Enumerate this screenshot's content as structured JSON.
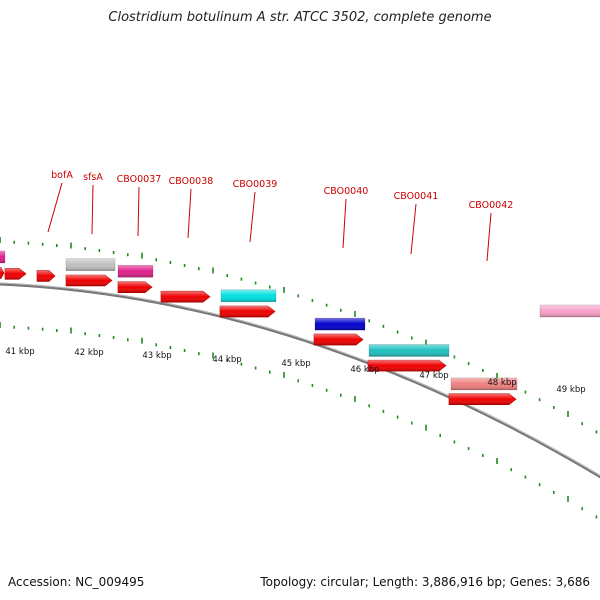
{
  "title": "Clostridium botulinum A str. ATCC 3502, complete genome",
  "footer": {
    "accession": "Accession: NC_009495",
    "summary": "Topology: circular; Length: 3,886,916 bp; Genes: 3,686"
  },
  "colors": {
    "backbone": "#888888",
    "tick": "#228B22",
    "cds": "#ee0000",
    "gene_label": "#cc0000",
    "kbp_label": "#111111"
  },
  "scale_labels": [
    "41 kbp",
    "42 kbp",
    "43 kbp",
    "44 kbp",
    "45 kbp",
    "46 kbp",
    "47 kbp",
    "48 kbp",
    "49 kbp"
  ],
  "gene_labels": [
    "bofA",
    "sfsA",
    "CBO0037",
    "CBO0038",
    "CBO0039",
    "CBO0040",
    "CBO0041",
    "CBO0042"
  ],
  "genes": [
    {
      "name": "",
      "color": "#e0208c"
    },
    {
      "name": "sfsA",
      "color": "#c0c0c0"
    },
    {
      "name": "CBO0037",
      "color": "#e0208c"
    },
    {
      "name": "CBO0039",
      "color": "#00e0e0"
    },
    {
      "name": "CBO0040",
      "color": "#0000cc"
    },
    {
      "name": "CBO0041",
      "color": "#20c0c0"
    },
    {
      "name": "CBO0042",
      "color": "#f08080"
    },
    {
      "name": "",
      "color": "#f8a0c8"
    }
  ]
}
